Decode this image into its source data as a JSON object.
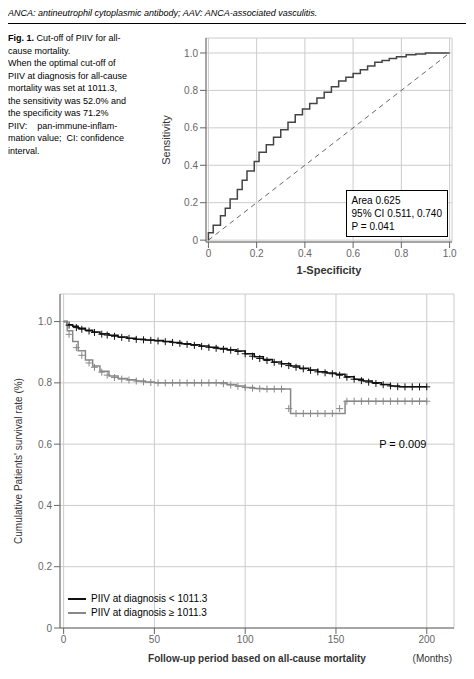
{
  "title": "ANCA: antineutrophil cytoplasmic antibody; AAV: ANCA-associated vasculitis.",
  "chart_data": [
    {
      "type": "line",
      "title": "Fig. 1.",
      "subtitle": [
        "Cut-off of PIIV for all-",
        "cause mortality.",
        "When the optimal cut-off of",
        "PIIV at diagnosis for all-cause",
        "mortality was set at 1011.3,",
        "the sensitivity was 52.0% and",
        "the specificity was 71.2%",
        "PIIV:    pan-immune-inflam-",
        "mation value;  CI: confidence",
        "interval."
      ],
      "xlabel": "1-Specificity",
      "ylabel": "Sensitivity",
      "annotations": [
        "Area 0.625\n95% CI 0.511, 0.740\nP = 0.041"
      ],
      "xlim": [
        -0.01,
        1.01
      ],
      "ylim": [
        -0.01,
        1.08
      ],
      "xticks": [
        0,
        0.2,
        0.4,
        0.6,
        0.8,
        {
          "value": 1.0,
          "label": "1.0"
        }
      ],
      "yticks": [
        0,
        0.2,
        0.4,
        0.6,
        0.8,
        {
          "value": 1.0,
          "label": "1.0"
        }
      ],
      "grid": true,
      "series": [
        {
          "color": "#666666",
          "line_style": "dashed",
          "x": [
            0,
            1
          ],
          "values": [
            0,
            1
          ]
        },
        {
          "color": "#444444",
          "x": [
            0.0,
            0.0,
            0.02,
            0.02,
            0.05,
            0.05,
            0.07,
            0.07,
            0.09,
            0.09,
            0.12,
            0.12,
            0.14,
            0.14,
            0.16,
            0.16,
            0.19,
            0.19,
            0.21,
            0.21,
            0.24,
            0.24,
            0.27,
            0.27,
            0.3,
            0.3,
            0.33,
            0.33,
            0.36,
            0.36,
            0.39,
            0.39,
            0.42,
            0.42,
            0.45,
            0.45,
            0.48,
            0.48,
            0.51,
            0.51,
            0.54,
            0.54,
            0.57,
            0.57,
            0.6,
            0.6,
            0.63,
            0.63,
            0.66,
            0.66,
            0.69,
            0.69,
            0.72,
            0.72,
            0.75,
            0.75,
            0.78,
            0.78,
            0.82,
            0.82,
            0.86,
            0.86,
            0.9,
            0.9,
            1.0
          ],
          "values": [
            0.0,
            0.04,
            0.04,
            0.08,
            0.08,
            0.13,
            0.13,
            0.17,
            0.17,
            0.22,
            0.22,
            0.27,
            0.27,
            0.32,
            0.32,
            0.37,
            0.37,
            0.42,
            0.42,
            0.47,
            0.47,
            0.51,
            0.51,
            0.55,
            0.55,
            0.59,
            0.59,
            0.63,
            0.63,
            0.67,
            0.67,
            0.7,
            0.7,
            0.73,
            0.73,
            0.76,
            0.76,
            0.79,
            0.79,
            0.82,
            0.82,
            0.85,
            0.85,
            0.87,
            0.87,
            0.89,
            0.89,
            0.91,
            0.91,
            0.93,
            0.93,
            0.95,
            0.95,
            0.96,
            0.96,
            0.97,
            0.97,
            0.98,
            0.98,
            0.99,
            0.99,
            0.995,
            0.995,
            1.0,
            1.0
          ]
        }
      ]
    },
    {
      "type": "step",
      "xlabel": [
        "Follow-up period based on all-cause mortality",
        "(Months)"
      ],
      "ylabel": "Cumulative Patients' survival rate (%)",
      "annotations": [
        "P = 0.009"
      ],
      "xlim": [
        -2,
        215
      ],
      "ylim": [
        0,
        1.09
      ],
      "xticks": [
        0,
        50,
        100,
        150,
        200
      ],
      "yticks": [
        0,
        0.2,
        0.4,
        0.6,
        0.8,
        {
          "value": 1.0,
          "label": "1.0"
        }
      ],
      "grid": true,
      "legend": "lower left",
      "series": [
        {
          "name": "PIIV at diagnosis < 1011.3",
          "color": "#111111",
          "marker": "plus",
          "x": [
            0,
            2,
            5,
            8,
            12,
            16,
            20,
            25,
            30,
            35,
            40,
            45,
            50,
            55,
            60,
            65,
            70,
            75,
            80,
            85,
            90,
            95,
            100,
            105,
            110,
            115,
            120,
            125,
            130,
            135,
            140,
            145,
            150,
            155,
            160,
            165,
            170,
            175,
            180,
            185,
            190,
            195,
            200
          ],
          "values": [
            1.0,
            0.99,
            0.985,
            0.978,
            0.972,
            0.966,
            0.96,
            0.955,
            0.95,
            0.946,
            0.942,
            0.94,
            0.938,
            0.935,
            0.932,
            0.928,
            0.924,
            0.92,
            0.916,
            0.912,
            0.908,
            0.904,
            0.895,
            0.885,
            0.876,
            0.868,
            0.862,
            0.855,
            0.848,
            0.842,
            0.836,
            0.832,
            0.828,
            0.82,
            0.812,
            0.806,
            0.8,
            0.795,
            0.79,
            0.787,
            0.787,
            0.787,
            0.787
          ],
          "censor_x": [
            3,
            7,
            10,
            14,
            17,
            21,
            24,
            28,
            32,
            36,
            40,
            44,
            48,
            52,
            56,
            60,
            64,
            68,
            72,
            76,
            80,
            84,
            88,
            92,
            96,
            100,
            104,
            108,
            112,
            116,
            120,
            124,
            128,
            132,
            136,
            140,
            144,
            148,
            152,
            156,
            160,
            164,
            168,
            172,
            176,
            180,
            184,
            188,
            192,
            196,
            200
          ],
          "censor_values": [
            0.9883333333,
            0.9803333333,
            0.975,
            0.969,
            0.9645,
            0.959,
            0.956,
            0.952,
            0.9484,
            0.9452,
            0.942,
            0.9404,
            0.9388,
            0.9368,
            0.9344,
            0.932,
            0.9288,
            0.9256,
            0.9224,
            0.9192,
            0.916,
            0.9128,
            0.9096,
            0.9064,
            0.9022,
            0.895,
            0.887,
            0.8796,
            0.8728,
            0.8668,
            0.862,
            0.8564,
            0.8508,
            0.8456,
            0.8408,
            0.836,
            0.8328,
            0.8296,
            0.8248,
            0.8184,
            0.812,
            0.8072,
            0.8024,
            0.798,
            0.794,
            0.79,
            0.7876,
            0.787,
            0.787,
            0.787,
            0.787
          ]
        },
        {
          "name": "PIIV at diagnosis ≥ 1011.3",
          "color": "#888888",
          "marker": "plus",
          "x": [
            0,
            2,
            5,
            8,
            12,
            16,
            20,
            25,
            30,
            35,
            40,
            45,
            50,
            55,
            60,
            65,
            70,
            75,
            80,
            85,
            90,
            95,
            100,
            105,
            110,
            115,
            120,
            125,
            130,
            135,
            140,
            145,
            150,
            155,
            160,
            165,
            170,
            175,
            180,
            185,
            190,
            195,
            200
          ],
          "values": [
            1.0,
            0.97,
            0.935,
            0.905,
            0.875,
            0.855,
            0.838,
            0.822,
            0.814,
            0.81,
            0.806,
            0.803,
            0.8,
            0.8,
            0.8,
            0.8,
            0.8,
            0.8,
            0.8,
            0.8,
            0.795,
            0.79,
            0.785,
            0.782,
            0.78,
            0.78,
            0.78,
            0.7,
            0.7,
            0.7,
            0.7,
            0.7,
            0.7,
            0.74,
            0.74,
            0.74,
            0.74,
            0.74,
            0.74,
            0.74,
            0.74,
            0.74,
            0.74
          ],
          "censor_x": [
            3,
            7,
            10,
            14,
            17,
            21,
            24,
            28,
            32,
            36,
            40,
            44,
            48,
            52,
            56,
            60,
            64,
            68,
            72,
            76,
            80,
            84,
            88,
            92,
            96,
            100,
            104,
            108,
            112,
            116,
            120,
            124,
            128,
            132,
            136,
            140,
            144,
            148,
            152,
            156,
            160,
            164,
            168,
            172,
            176,
            180,
            184,
            188,
            192,
            196,
            200
          ],
          "censor_values": [
            0.9583333333,
            0.915,
            0.89,
            0.865,
            0.85075,
            0.8348,
            0.8252,
            0.8172,
            0.8124,
            0.8092,
            0.806,
            0.8036,
            0.8012,
            0.8,
            0.8,
            0.8,
            0.8,
            0.8,
            0.8,
            0.8,
            0.8,
            0.8,
            0.797,
            0.793,
            0.789,
            0.785,
            0.7826,
            0.7808,
            0.78,
            0.78,
            0.78,
            0.716,
            0.7,
            0.7,
            0.7,
            0.7,
            0.7,
            0.7,
            0.716,
            0.74,
            0.74,
            0.74,
            0.74,
            0.74,
            0.74,
            0.74,
            0.74,
            0.74,
            0.74,
            0.74,
            0.74
          ]
        }
      ]
    }
  ]
}
